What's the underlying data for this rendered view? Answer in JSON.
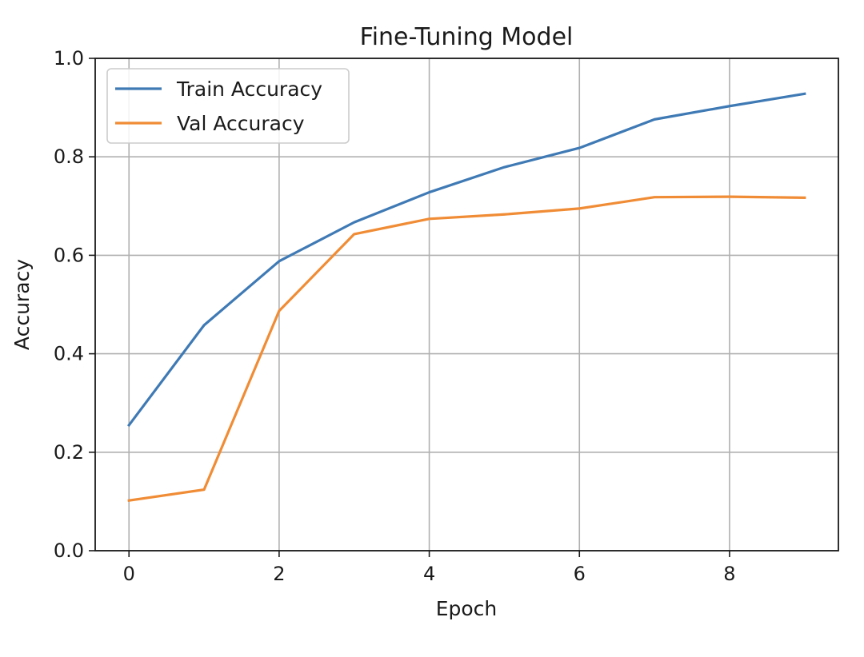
{
  "chart_data": {
    "type": "line",
    "title": "Fine-Tuning Model",
    "xlabel": "Epoch",
    "ylabel": "Accuracy",
    "x": [
      0,
      1,
      2,
      3,
      4,
      5,
      6,
      7,
      8,
      9
    ],
    "xlim": [
      -0.45,
      9.45
    ],
    "ylim": [
      0.0,
      1.0
    ],
    "xticks": [
      0,
      2,
      4,
      6,
      8
    ],
    "yticks": [
      0.0,
      0.2,
      0.4,
      0.6,
      0.8,
      1.0
    ],
    "xtick_labels": [
      "0",
      "2",
      "4",
      "6",
      "8"
    ],
    "ytick_labels": [
      "0.0",
      "0.2",
      "0.4",
      "0.6",
      "0.8",
      "1.0"
    ],
    "grid": true,
    "legend_position": "top-left",
    "series": [
      {
        "name": "Train Accuracy",
        "color": "#3f7ab5",
        "values": [
          0.255,
          0.458,
          0.588,
          0.667,
          0.728,
          0.779,
          0.818,
          0.876,
          0.903,
          0.928
        ]
      },
      {
        "name": "Val Accuracy",
        "color": "#f08c35",
        "values": [
          0.102,
          0.124,
          0.487,
          0.643,
          0.674,
          0.683,
          0.695,
          0.718,
          0.719,
          0.717
        ]
      }
    ]
  }
}
